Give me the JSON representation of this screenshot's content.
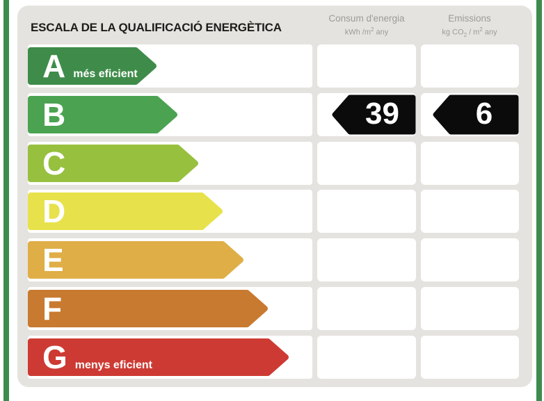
{
  "title": "ESCALA DE LA QUALIFICACIÓ ENERGÈTICA",
  "header": {
    "consum": {
      "label": "Consum d'energia",
      "unit_prefix": "kWh /m",
      "unit_sup": "2",
      "unit_suffix": " any"
    },
    "emissions": {
      "label": "Emissions",
      "unit_prefix": "kg CO",
      "unit_sub": "2",
      "unit_mid": " / m",
      "unit_sup": "2",
      "unit_suffix": " any"
    }
  },
  "scale": {
    "rows": [
      {
        "letter": "A",
        "note": "més eficient",
        "color": "#3f8c4a"
      },
      {
        "letter": "B",
        "note": "",
        "color": "#4ba351"
      },
      {
        "letter": "C",
        "note": "",
        "color": "#97c03f"
      },
      {
        "letter": "D",
        "note": "",
        "color": "#e7e24b"
      },
      {
        "letter": "E",
        "note": "",
        "color": "#dfae47"
      },
      {
        "letter": "F",
        "note": "",
        "color": "#c87a30"
      },
      {
        "letter": "G",
        "note": "menys eficient",
        "color": "#cd3a33"
      }
    ]
  },
  "rating": {
    "letter": "B",
    "row_index": 1,
    "consum_value": "39",
    "emissions_value": "6",
    "arrow_color": "#0b0b0b",
    "text_color": "#ffffff"
  },
  "colors": {
    "frame_green": "#3e8b4e",
    "panel_background": "#e5e3df",
    "cell_background": "#ffffff"
  },
  "chart_data": {
    "type": "table",
    "title": "ESCALA DE LA QUALIFICACIÓ ENERGÈTICA",
    "categories": [
      "A",
      "B",
      "C",
      "D",
      "E",
      "F",
      "G"
    ],
    "category_notes": {
      "A": "més eficient",
      "G": "menys eficient"
    },
    "columns": [
      "Consum d'energia (kWh/m² any)",
      "Emissions (kg CO₂/m² any)"
    ],
    "rating": "B",
    "values": {
      "consum_kwh_m2_any": 39,
      "emissions_kg_co2_m2_any": 6
    },
    "category_colors": [
      "#3f8c4a",
      "#4ba351",
      "#97c03f",
      "#e7e24b",
      "#dfae47",
      "#c87a30",
      "#cd3a33"
    ],
    "legend_position": "none",
    "grid": false
  }
}
